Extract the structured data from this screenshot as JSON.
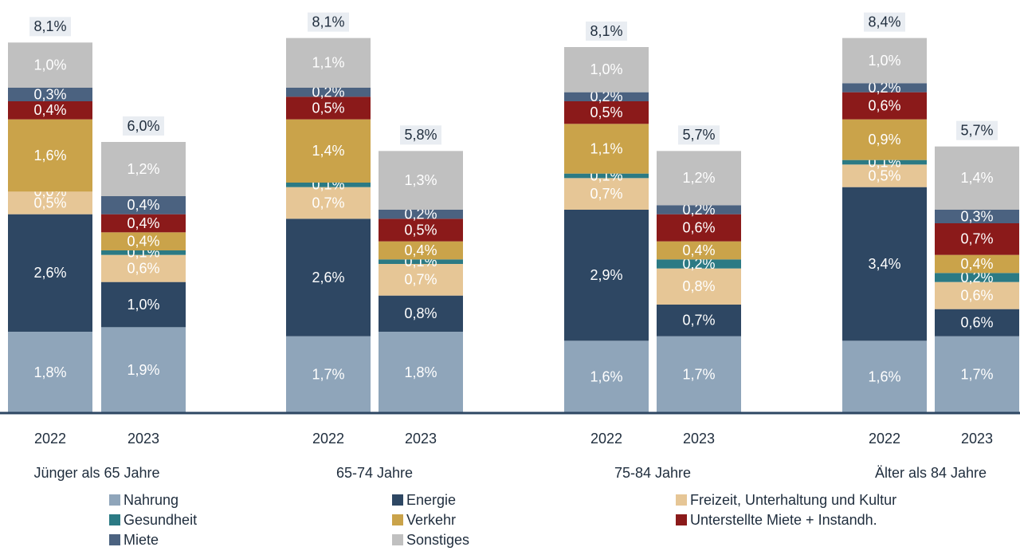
{
  "chart_data": {
    "type": "stacked_bar",
    "categories": [
      "2022",
      "2023",
      "2022",
      "2023",
      "2022",
      "2023",
      "2022",
      "2023"
    ],
    "groups": [
      "Jünger als 65 Jahre",
      "65-74 Jahre",
      "75-84 Jahre",
      "Älter als 84 Jahre"
    ],
    "totals": [
      8.1,
      6.0,
      8.1,
      5.8,
      8.1,
      5.7,
      8.4,
      5.7
    ],
    "total_labels": [
      "8,1%",
      "6,0%",
      "8,1%",
      "5,8%",
      "8,1%",
      "5,7%",
      "8,4%",
      "5,7%"
    ],
    "series": [
      {
        "name": "Nahrung",
        "color": "#8fa5ba",
        "values": [
          1.8,
          1.9,
          1.7,
          1.8,
          1.6,
          1.7,
          1.6,
          1.7
        ],
        "value_labels": [
          "1,8%",
          "1,9%",
          "1,7%",
          "1,8%",
          "1,6%",
          "1,7%",
          "1,6%",
          "1,7%"
        ]
      },
      {
        "name": "Energie",
        "color": "#2e4763",
        "values": [
          2.6,
          1.0,
          2.6,
          0.8,
          2.9,
          0.7,
          3.4,
          0.6
        ],
        "value_labels": [
          "2,6%",
          "1,0%",
          "2,6%",
          "0,8%",
          "2,9%",
          "0,7%",
          "3,4%",
          "0,6%"
        ]
      },
      {
        "name": "Freizeit, Unterhaltung und Kultur",
        "color": "#e6c696",
        "values": [
          0.5,
          0.6,
          0.7,
          0.7,
          0.7,
          0.8,
          0.5,
          0.6
        ],
        "value_labels": [
          "0,5%",
          "0,6%",
          "0,7%",
          "0,7%",
          "0,7%",
          "0,8%",
          "0,5%",
          "0,6%"
        ]
      },
      {
        "name": "Gesundheit",
        "color": "#2b7a84",
        "values": [
          0.0,
          0.1,
          0.1,
          0.1,
          0.1,
          0.2,
          0.1,
          0.2
        ],
        "value_labels": [
          "0,0%",
          "0,1%",
          "0,1%",
          "0,1%",
          "0,1%",
          "0,2%",
          "0,1%",
          "0,2%"
        ]
      },
      {
        "name": "Verkehr",
        "color": "#caa34a",
        "values": [
          1.6,
          0.4,
          1.4,
          0.4,
          1.1,
          0.4,
          0.9,
          0.4
        ],
        "value_labels": [
          "1,6%",
          "0,4%",
          "1,4%",
          "0,4%",
          "1,1%",
          "0,4%",
          "0,9%",
          "0,4%"
        ]
      },
      {
        "name": "Unterstellte Miete + Instandh.",
        "color": "#8b1a1a",
        "values": [
          0.4,
          0.4,
          0.5,
          0.5,
          0.5,
          0.6,
          0.6,
          0.7
        ],
        "value_labels": [
          "0,4%",
          "0,4%",
          "0,5%",
          "0,5%",
          "0,5%",
          "0,6%",
          "0,6%",
          "0,7%"
        ]
      },
      {
        "name": "Miete",
        "color": "#4b6280",
        "values": [
          0.3,
          0.4,
          0.2,
          0.2,
          0.2,
          0.2,
          0.2,
          0.3
        ],
        "value_labels": [
          "0,3%",
          "0,4%",
          "0,2%",
          "0,2%",
          "0,2%",
          "0,2%",
          "0,2%",
          "0,3%"
        ]
      },
      {
        "name": "Sonstiges",
        "color": "#c0c0c0",
        "values": [
          1.0,
          1.2,
          1.1,
          1.3,
          1.0,
          1.2,
          1.0,
          1.4
        ],
        "value_labels": [
          "1,0%",
          "1,2%",
          "1,1%",
          "1,3%",
          "1,0%",
          "1,2%",
          "1,0%",
          "1,4%"
        ]
      }
    ]
  }
}
